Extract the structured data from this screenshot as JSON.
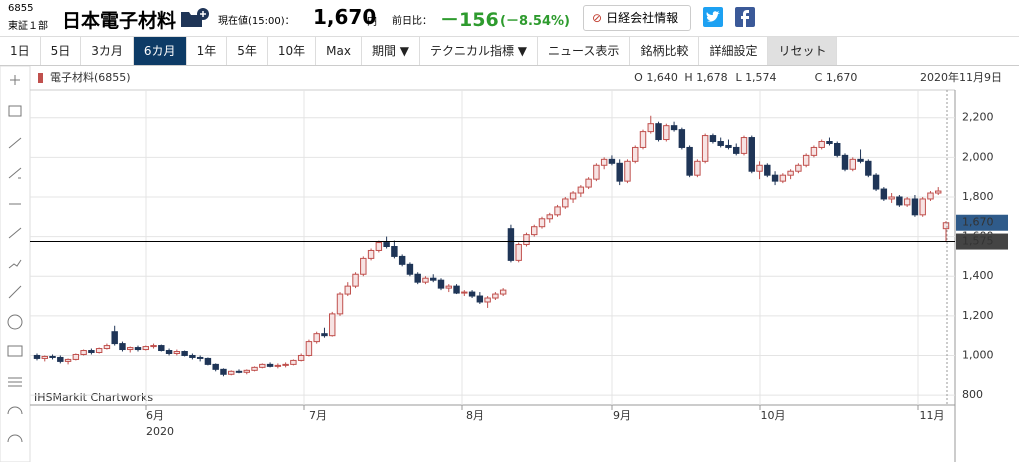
{
  "header": {
    "code": "6855",
    "market": "東証１部",
    "name": "日本電子材料",
    "price_label": "現在値(15:00)：",
    "price": "1,670",
    "price_unit": "円",
    "change_label": "前日比：",
    "change": "－156",
    "change_pct": "(－8.54%)",
    "button": "日経会社情報"
  },
  "toolbar": {
    "buttons": [
      "1日",
      "5日",
      "3カ月",
      "6カ月",
      "1年",
      "5年",
      "10年",
      "Max",
      "期間 ▼",
      "テクニカル指標 ▼",
      "ニュース表示",
      "銘柄比較",
      "詳細設定",
      "リセット"
    ],
    "active": 3
  },
  "chart": {
    "type": "candlestick",
    "title": "電子材料(6855)",
    "ohlc_labels": [
      "O 1,640",
      "H 1,678",
      "L 1,574",
      "C 1,670"
    ],
    "date": "2020年11月9日",
    "source": "IHSMarkit Chartworks",
    "months": [
      "6月",
      "7月",
      "8月",
      "9月",
      "10月",
      "11月"
    ],
    "year": "2020",
    "ylim": [
      750,
      2340
    ],
    "yticks": [
      800,
      {
        "value": 1000,
        "label": "1,000"
      },
      {
        "value": 1200,
        "label": "1,200"
      },
      {
        "value": 1400,
        "label": "1,400"
      },
      {
        "value": 1600,
        "label": "1,600"
      },
      {
        "value": 1800,
        "label": "1,800"
      },
      {
        "value": 2000,
        "label": "2,000"
      },
      {
        "value": 2200,
        "label": "2,200"
      }
    ],
    "grid": true,
    "up_color": "#c0504d",
    "down_color": "#1f3557",
    "reference_line": {
      "value": 1575,
      "label": "1,575"
    },
    "last_price": {
      "value": 1670,
      "label": "1,670"
    },
    "candles": [
      [
        1000,
        1010,
        975,
        985
      ],
      [
        985,
        1000,
        970,
        995
      ],
      [
        995,
        1005,
        980,
        990
      ],
      [
        990,
        1000,
        960,
        970
      ],
      [
        970,
        985,
        955,
        980
      ],
      [
        980,
        1010,
        975,
        1005
      ],
      [
        1005,
        1030,
        1000,
        1025
      ],
      [
        1025,
        1035,
        1005,
        1015
      ],
      [
        1015,
        1040,
        1010,
        1035
      ],
      [
        1035,
        1060,
        1030,
        1050
      ],
      [
        1120,
        1150,
        1050,
        1060
      ],
      [
        1060,
        1070,
        1020,
        1030
      ],
      [
        1030,
        1045,
        1015,
        1040
      ],
      [
        1040,
        1050,
        1020,
        1030
      ],
      [
        1030,
        1050,
        1025,
        1045
      ],
      [
        1045,
        1060,
        1035,
        1050
      ],
      [
        1050,
        1055,
        1020,
        1025
      ],
      [
        1025,
        1035,
        1000,
        1010
      ],
      [
        1010,
        1030,
        1000,
        1020
      ],
      [
        1020,
        1025,
        995,
        1000
      ],
      [
        1000,
        1010,
        980,
        990
      ],
      [
        990,
        1000,
        970,
        985
      ],
      [
        985,
        990,
        950,
        955
      ],
      [
        955,
        960,
        920,
        930
      ],
      [
        930,
        935,
        895,
        905
      ],
      [
        905,
        925,
        900,
        920
      ],
      [
        920,
        930,
        910,
        915
      ],
      [
        915,
        930,
        905,
        925
      ],
      [
        925,
        945,
        920,
        940
      ],
      [
        940,
        960,
        935,
        955
      ],
      [
        955,
        965,
        940,
        945
      ],
      [
        945,
        960,
        935,
        950
      ],
      [
        950,
        965,
        940,
        955
      ],
      [
        955,
        980,
        950,
        975
      ],
      [
        975,
        1010,
        970,
        1000
      ],
      [
        1000,
        1080,
        995,
        1070
      ],
      [
        1070,
        1120,
        1060,
        1110
      ],
      [
        1110,
        1140,
        1090,
        1100
      ],
      [
        1100,
        1220,
        1095,
        1210
      ],
      [
        1210,
        1320,
        1200,
        1310
      ],
      [
        1310,
        1370,
        1300,
        1350
      ],
      [
        1350,
        1420,
        1340,
        1410
      ],
      [
        1410,
        1500,
        1400,
        1490
      ],
      [
        1490,
        1540,
        1480,
        1530
      ],
      [
        1530,
        1580,
        1520,
        1570
      ],
      [
        1570,
        1600,
        1540,
        1550
      ],
      [
        1550,
        1580,
        1490,
        1500
      ],
      [
        1500,
        1510,
        1450,
        1460
      ],
      [
        1460,
        1470,
        1400,
        1410
      ],
      [
        1410,
        1420,
        1360,
        1370
      ],
      [
        1370,
        1400,
        1360,
        1390
      ],
      [
        1390,
        1410,
        1370,
        1380
      ],
      [
        1380,
        1390,
        1330,
        1340
      ],
      [
        1340,
        1360,
        1320,
        1350
      ],
      [
        1350,
        1360,
        1310,
        1315
      ],
      [
        1315,
        1330,
        1300,
        1320
      ],
      [
        1320,
        1330,
        1290,
        1300
      ],
      [
        1300,
        1320,
        1260,
        1270
      ],
      [
        1270,
        1300,
        1240,
        1290
      ],
      [
        1290,
        1320,
        1280,
        1310
      ],
      [
        1310,
        1340,
        1300,
        1330
      ],
      [
        1640,
        1660,
        1470,
        1480
      ],
      [
        1480,
        1570,
        1470,
        1560
      ],
      [
        1560,
        1620,
        1550,
        1610
      ],
      [
        1610,
        1660,
        1600,
        1650
      ],
      [
        1650,
        1700,
        1640,
        1690
      ],
      [
        1690,
        1720,
        1670,
        1710
      ],
      [
        1710,
        1760,
        1700,
        1750
      ],
      [
        1750,
        1800,
        1740,
        1790
      ],
      [
        1790,
        1830,
        1770,
        1820
      ],
      [
        1820,
        1860,
        1800,
        1850
      ],
      [
        1850,
        1900,
        1840,
        1890
      ],
      [
        1890,
        1970,
        1880,
        1960
      ],
      [
        1960,
        2000,
        1940,
        1990
      ],
      [
        1990,
        2010,
        1960,
        1970
      ],
      [
        1970,
        1990,
        1860,
        1880
      ],
      [
        1880,
        1990,
        1870,
        1980
      ],
      [
        1980,
        2060,
        1970,
        2050
      ],
      [
        2050,
        2140,
        2040,
        2130
      ],
      [
        2130,
        2210,
        2120,
        2170
      ],
      [
        2170,
        2180,
        2080,
        2090
      ],
      [
        2090,
        2170,
        2080,
        2160
      ],
      [
        2160,
        2180,
        2130,
        2140
      ],
      [
        2140,
        2150,
        2040,
        2050
      ],
      [
        2050,
        2060,
        1900,
        1910
      ],
      [
        1910,
        1990,
        1900,
        1980
      ],
      [
        1980,
        2120,
        1970,
        2110
      ],
      [
        2110,
        2120,
        2070,
        2080
      ],
      [
        2080,
        2100,
        2050,
        2060
      ],
      [
        2060,
        2090,
        2040,
        2050
      ],
      [
        2050,
        2070,
        2010,
        2020
      ],
      [
        2020,
        2110,
        2010,
        2100
      ],
      [
        2100,
        2110,
        1920,
        1930
      ],
      [
        1930,
        1980,
        1890,
        1960
      ],
      [
        1960,
        1970,
        1900,
        1910
      ],
      [
        1910,
        1930,
        1860,
        1880
      ],
      [
        1880,
        1920,
        1870,
        1910
      ],
      [
        1910,
        1940,
        1890,
        1930
      ],
      [
        1930,
        1970,
        1920,
        1960
      ],
      [
        1960,
        2020,
        1950,
        2010
      ],
      [
        2010,
        2060,
        2000,
        2050
      ],
      [
        2050,
        2090,
        2040,
        2080
      ],
      [
        2080,
        2100,
        2060,
        2070
      ],
      [
        2070,
        2080,
        2000,
        2010
      ],
      [
        2010,
        2020,
        1930,
        1940
      ],
      [
        1940,
        2000,
        1930,
        1990
      ],
      [
        1990,
        2040,
        1970,
        1980
      ],
      [
        1980,
        1990,
        1900,
        1910
      ],
      [
        1910,
        1920,
        1830,
        1840
      ],
      [
        1840,
        1850,
        1780,
        1790
      ],
      [
        1790,
        1820,
        1770,
        1800
      ],
      [
        1800,
        1810,
        1750,
        1760
      ],
      [
        1760,
        1800,
        1750,
        1790
      ],
      [
        1790,
        1810,
        1700,
        1710
      ],
      [
        1710,
        1800,
        1700,
        1790
      ],
      [
        1790,
        1830,
        1780,
        1820
      ],
      [
        1820,
        1850,
        1810,
        1830
      ],
      [
        1640,
        1678,
        1574,
        1670
      ]
    ]
  }
}
